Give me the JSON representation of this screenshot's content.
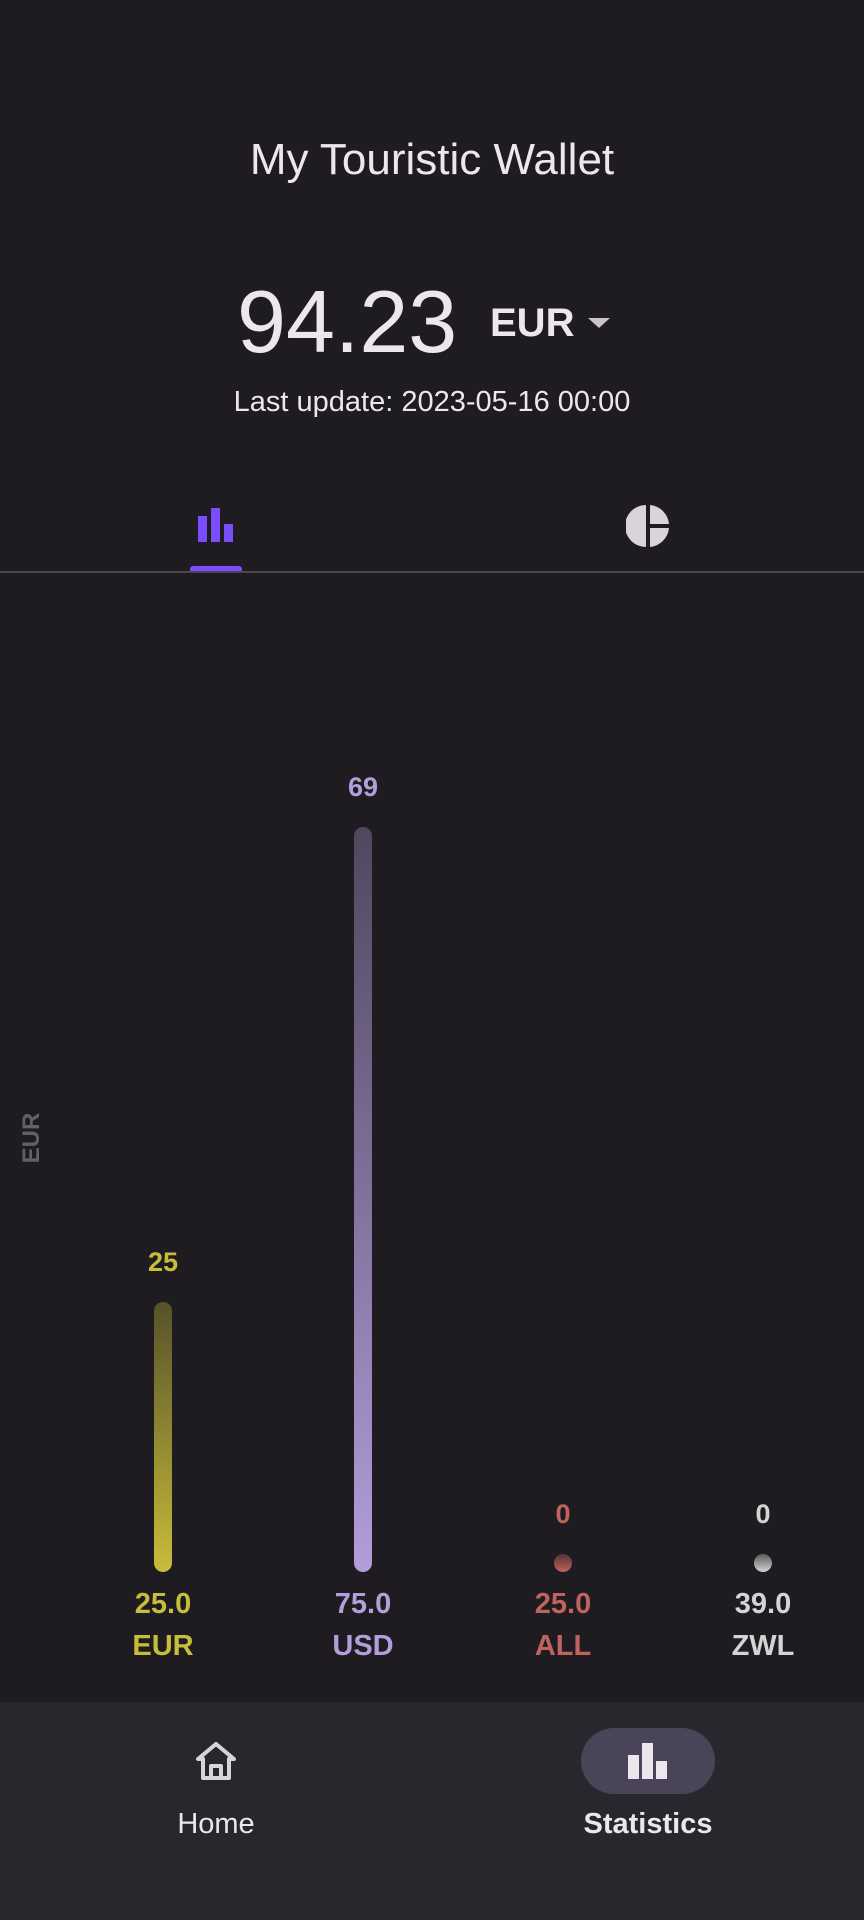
{
  "app": {
    "title": "My Touristic Wallet"
  },
  "balance": {
    "amount": "94.23",
    "currency": "EUR",
    "last_update": "Last update: 2023-05-16 00:00"
  },
  "tabs": [
    {
      "icon": "bar-chart-icon",
      "selected": true
    },
    {
      "icon": "pie-chart-icon",
      "selected": false
    }
  ],
  "colors": {
    "accent": "#7c4dff",
    "eur": "#c8bd3a",
    "usd": "#b39ddb",
    "all": "#c0625e",
    "zwl": "#d4d4d4"
  },
  "chart_data": {
    "type": "bar",
    "ylabel": "EUR",
    "categories": [
      "EUR",
      "USD",
      "ALL",
      "ZWL"
    ],
    "values": [
      25,
      69,
      0,
      0
    ],
    "amounts": [
      "25.0",
      "75.0",
      "25.0",
      "39.0"
    ],
    "value_labels": [
      "25",
      "69",
      "0",
      "0"
    ],
    "ylim": [
      0,
      69
    ]
  },
  "nav": {
    "home_label": "Home",
    "stats_label": "Statistics",
    "home_icon": "home-icon",
    "stats_icon": "statistics-icon",
    "selected": "Statistics"
  }
}
